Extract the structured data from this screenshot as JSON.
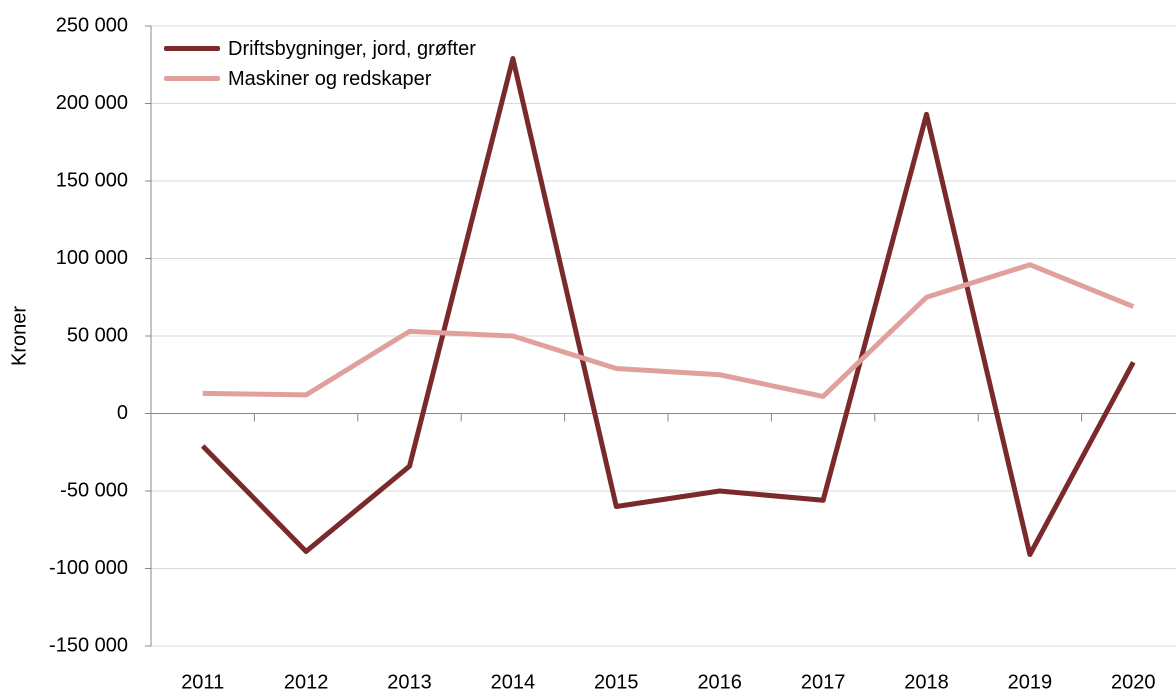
{
  "chart_data": {
    "type": "line",
    "y_label": "Kroner",
    "categories": [
      "2011",
      "2012",
      "2013",
      "2014",
      "2015",
      "2016",
      "2017",
      "2018",
      "2019",
      "2020"
    ],
    "series": [
      {
        "name": "Driftsbygninger, jord, grøfter",
        "color": "#7b2a2c",
        "values": [
          -21000,
          -89000,
          -34000,
          229000,
          -60000,
          -50000,
          -56000,
          193000,
          -91000,
          33000
        ]
      },
      {
        "name": "Maskiner og redskaper",
        "color": "#e0a19d",
        "values": [
          13000,
          12000,
          53000,
          50000,
          29000,
          25000,
          11000,
          75000,
          96000,
          69000
        ]
      }
    ],
    "ylim": [
      -150000,
      250000
    ],
    "yticks": [
      {
        "value": -150000,
        "label": "-150 000"
      },
      {
        "value": -100000,
        "label": "-100 000"
      },
      {
        "value": -50000,
        "label": "-50 000"
      },
      0,
      {
        "value": 50000,
        "label": "50 000"
      },
      {
        "value": 100000,
        "label": "100 000"
      },
      {
        "value": 150000,
        "label": "150 000"
      },
      {
        "value": 200000,
        "label": "200 000"
      },
      {
        "value": 250000,
        "label": "250 000"
      }
    ],
    "grid": true,
    "legend": "top-left"
  }
}
